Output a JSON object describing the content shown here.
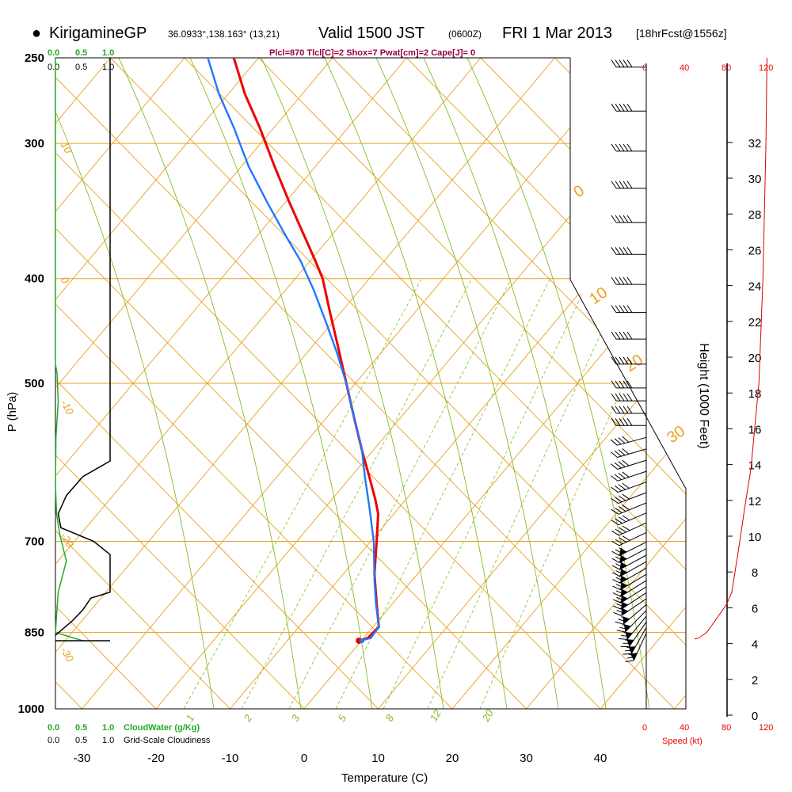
{
  "header": {
    "bullet": "●",
    "station": "KirigamineGP",
    "coords": "36.0933°,138.163° (13,21)",
    "valid": "Valid 1500 JST",
    "zulu": "(0600Z)",
    "date": "FRI 1 Mar 2013",
    "forecast": "[18hrFcst@1556z]"
  },
  "params": "Plcl=870 Tlcl[C]=2 Shox=7 Pwat[cm]=2 Cape[J]= 0",
  "cloud": {
    "top_green_labels": [
      "0.0",
      "0.5",
      "1.0"
    ],
    "top_black_labels": [
      "0.0",
      "0.5",
      "1.0"
    ],
    "bottom_green_labels": [
      "0.0",
      "0.5",
      "1.0"
    ],
    "bottom_black_labels": [
      "0.0",
      "0.5",
      "1.0"
    ],
    "green_title": "CloudWater (g/Kg)",
    "black_title": "Grid-Scale Cloudiness"
  },
  "speed": {
    "top_labels": [
      "0",
      "40",
      "80",
      "120"
    ],
    "bottom_labels": [
      "0",
      "40",
      "80",
      "120"
    ],
    "title": "Speed (kt)"
  },
  "colors": {
    "temperature": "#ee0000",
    "dewpoint": "#1f78ff",
    "isotherm": "#e8a020",
    "mixing_ratio": "#88bb22",
    "cloud_water": "#22aa22",
    "cloudiness": "#000000",
    "speed": "#dd0000"
  },
  "chart_data": {
    "type": "line",
    "title": "KirigamineGP 36.0933°,138.163° (13,21) Valid 1500 JST (0600Z) FRI 1 Mar 2013 [18hrFcst@1556z]",
    "xlabel": "Temperature (C)",
    "ylabel": "P (hPa)",
    "y2label": "Height (1000 Feet)",
    "x_ticks": [
      -30,
      -20,
      -10,
      0,
      10,
      20,
      30,
      40
    ],
    "y_ticks": [
      250,
      300,
      400,
      500,
      700,
      850,
      1000
    ],
    "y2_ticks": [
      0,
      2,
      4,
      6,
      8,
      10,
      12,
      14,
      16,
      18,
      20,
      22,
      24,
      26,
      28,
      30,
      32
    ],
    "xlim": [
      -34,
      36
    ],
    "ylim": [
      1000,
      250
    ],
    "isotherm_labels": [
      {
        "text": "10",
        "p": 300,
        "side": "left"
      },
      {
        "text": "0",
        "p": 400,
        "side": "left"
      },
      {
        "text": "-10",
        "p": 520,
        "side": "left"
      },
      {
        "text": "-20",
        "p": 690,
        "side": "left"
      },
      {
        "text": "-30",
        "p": 880,
        "side": "left"
      }
    ],
    "theta_labels": [
      "0",
      "10",
      "20",
      "30"
    ],
    "mixing_ratio_labels": [
      "1",
      "2",
      "3",
      "5",
      "8",
      "12",
      "20"
    ],
    "series": [
      {
        "name": "Temperature",
        "points": [
          [
            -9.5,
            250
          ],
          [
            -8,
            270
          ],
          [
            -6,
            290
          ],
          [
            -4,
            315
          ],
          [
            -2,
            340
          ],
          [
            0,
            365
          ],
          [
            1.5,
            385
          ],
          [
            2.5,
            400
          ],
          [
            3.5,
            430
          ],
          [
            4.5,
            460
          ],
          [
            5.7,
            500
          ],
          [
            6.8,
            540
          ],
          [
            7.9,
            580
          ],
          [
            8.8,
            610
          ],
          [
            9.6,
            640
          ],
          [
            10,
            660
          ],
          [
            9.8,
            700
          ],
          [
            9.5,
            750
          ],
          [
            9.8,
            800
          ],
          [
            10.1,
            840
          ],
          [
            8.6,
            860
          ],
          [
            7.4,
            865
          ]
        ]
      },
      {
        "name": "Dewpoint",
        "points": [
          [
            -13,
            250
          ],
          [
            -11.5,
            270
          ],
          [
            -9.5,
            290
          ],
          [
            -7.5,
            315
          ],
          [
            -5,
            340
          ],
          [
            -2.5,
            365
          ],
          [
            -0.5,
            385
          ],
          [
            1.3,
            410
          ],
          [
            3,
            440
          ],
          [
            4.5,
            470
          ],
          [
            5.7,
            500
          ],
          [
            6.8,
            540
          ],
          [
            7.8,
            575
          ],
          [
            8.2,
            610
          ],
          [
            8.8,
            650
          ],
          [
            9.4,
            700
          ],
          [
            9.5,
            760
          ],
          [
            9.7,
            800
          ],
          [
            10.1,
            840
          ],
          [
            9,
            860
          ],
          [
            7.6,
            865
          ]
        ]
      },
      {
        "name": "CloudWater (g/Kg)",
        "points": [
          [
            0,
            250
          ],
          [
            0,
            400
          ],
          [
            0,
            480
          ],
          [
            0.03,
            490
          ],
          [
            0.05,
            520
          ],
          [
            0.01,
            560
          ],
          [
            0,
            620
          ],
          [
            0.02,
            660
          ],
          [
            0.08,
            690
          ],
          [
            0.2,
            730
          ],
          [
            0.05,
            780
          ],
          [
            0.02,
            820
          ],
          [
            0,
            850
          ],
          [
            0.5,
            865
          ]
        ]
      },
      {
        "name": "Grid-Scale Cloudiness",
        "points": [
          [
            1,
            250
          ],
          [
            1,
            590
          ],
          [
            0.5,
            610
          ],
          [
            0.2,
            635
          ],
          [
            0.05,
            660
          ],
          [
            0.1,
            680
          ],
          [
            0.7,
            700
          ],
          [
            1,
            720
          ],
          [
            1,
            780
          ],
          [
            0.65,
            790
          ],
          [
            0.5,
            810
          ],
          [
            0.3,
            830
          ],
          [
            0,
            855
          ]
        ]
      },
      {
        "name": "Speed (kt)",
        "points": [
          [
            120,
            250
          ],
          [
            119,
            300
          ],
          [
            116,
            400
          ],
          [
            112,
            500
          ],
          [
            104,
            600
          ],
          [
            98,
            650
          ],
          [
            93,
            700
          ],
          [
            85,
            780
          ],
          [
            80,
            800
          ],
          [
            68,
            830
          ],
          [
            60,
            850
          ],
          [
            52,
            860
          ],
          [
            48,
            862
          ]
        ]
      }
    ]
  }
}
